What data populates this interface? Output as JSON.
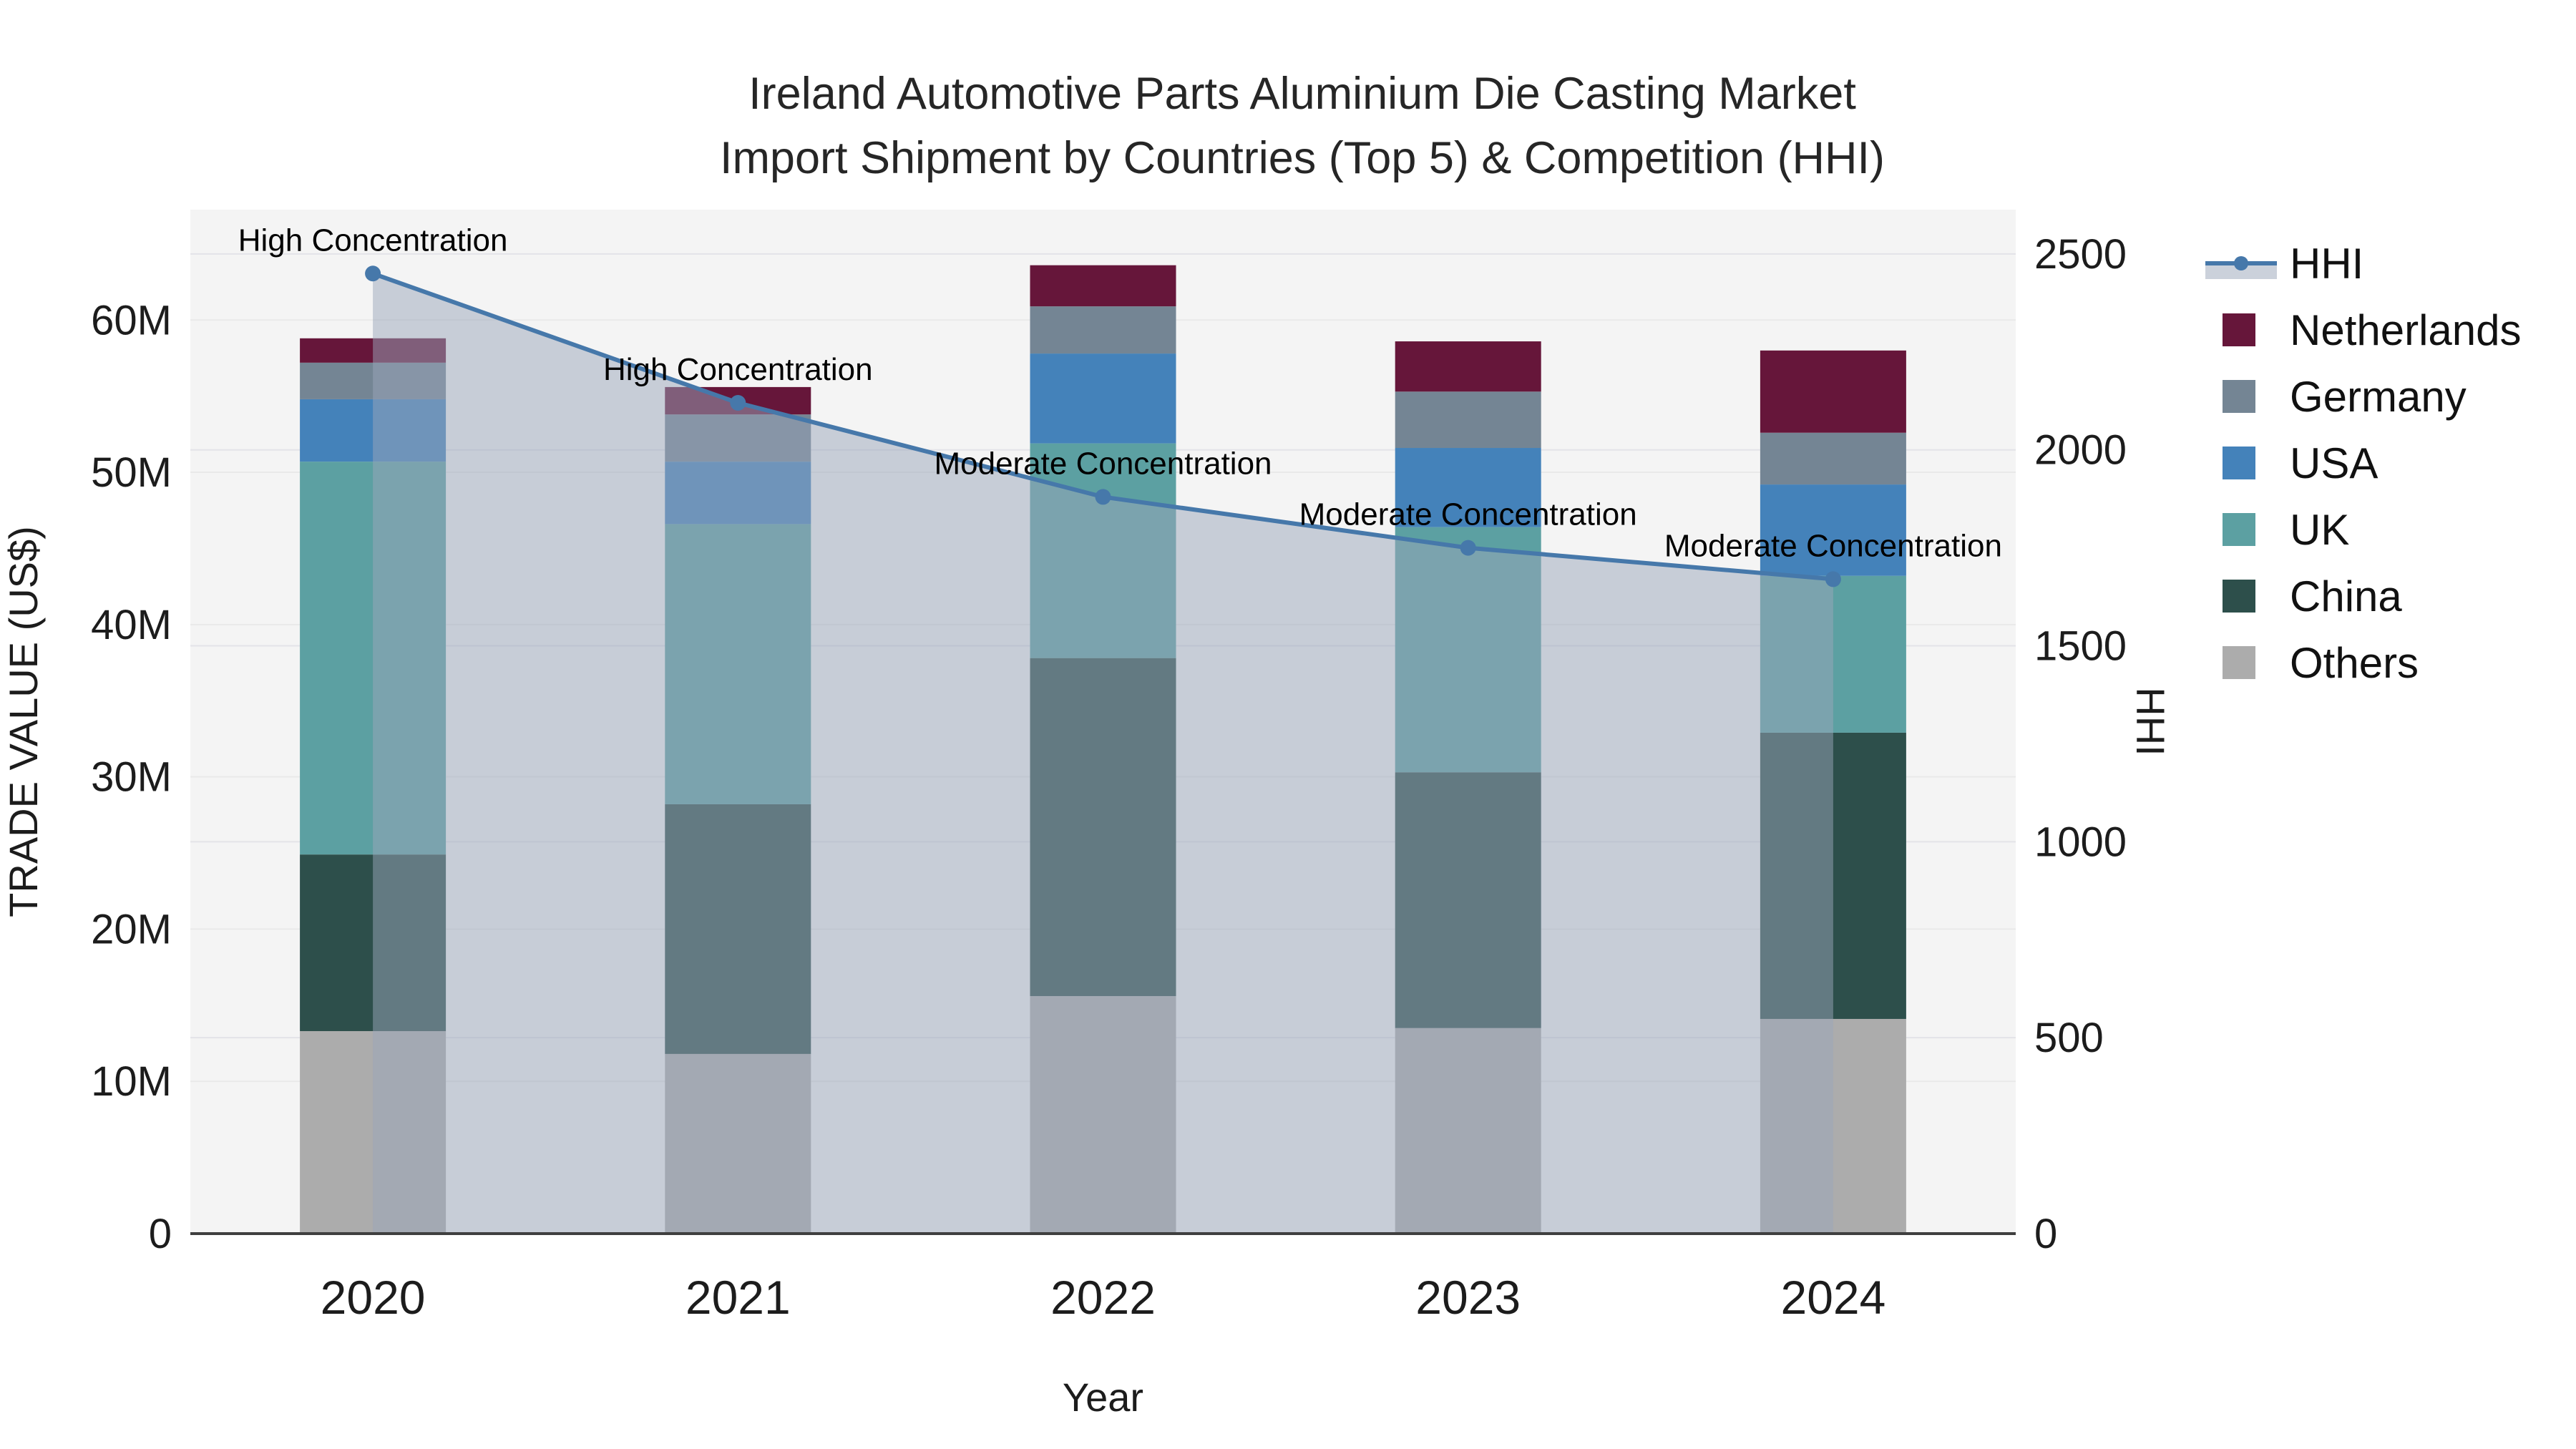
{
  "title": {
    "line1": "Ireland Automotive Parts Aluminium Die Casting Market",
    "line2": "Import Shipment by Countries (Top 5) & Competition (HHI)"
  },
  "chart_data": {
    "type": "combo_stacked_bar_line",
    "categories": [
      "2020",
      "2021",
      "2022",
      "2023",
      "2024"
    ],
    "bar_unit": "millions USD",
    "series": [
      {
        "name": "Others",
        "color": "#ACACAC",
        "values": [
          13.3,
          11.8,
          15.6,
          13.5,
          14.1
        ]
      },
      {
        "name": "China",
        "color": "#2D4F4B",
        "values": [
          11.6,
          16.4,
          22.2,
          16.8,
          18.8
        ]
      },
      {
        "name": "UK",
        "color": "#5CA0A2",
        "values": [
          25.8,
          18.4,
          14.1,
          16.1,
          10.3
        ]
      },
      {
        "name": "USA",
        "color": "#4482BA",
        "values": [
          4.1,
          4.1,
          5.9,
          5.2,
          6.0
        ]
      },
      {
        "name": "Germany",
        "color": "#748594",
        "values": [
          2.4,
          3.1,
          3.1,
          3.7,
          3.4
        ]
      },
      {
        "name": "Netherlands",
        "color": "#66163A",
        "values": [
          1.6,
          1.8,
          2.7,
          3.3,
          5.4
        ]
      }
    ],
    "line_series": {
      "name": "HHI",
      "color": "#4678AA",
      "area_fill": "rgba(154,166,185,0.5)",
      "values": [
        2450,
        2120,
        1880,
        1750,
        1670
      ]
    },
    "annotations": [
      {
        "x_index": 0,
        "text": "High Concentration"
      },
      {
        "x_index": 1,
        "text": "High Concentration"
      },
      {
        "x_index": 2,
        "text": "Moderate Concentration"
      },
      {
        "x_index": 3,
        "text": "Moderate Concentration"
      },
      {
        "x_index": 4,
        "text": "Moderate Concentration"
      }
    ],
    "xlabel": "Year",
    "y_left": {
      "title": "TRADE VALUE (US$)",
      "tick_labels": [
        "0",
        "10M",
        "20M",
        "30M",
        "40M",
        "50M",
        "60M"
      ],
      "tick_values": [
        0,
        10,
        20,
        30,
        40,
        50,
        60
      ],
      "range": [
        0,
        67.25
      ]
    },
    "y_right": {
      "title": "HHI",
      "tick_labels": [
        "0",
        "500",
        "1000",
        "1500",
        "2000",
        "2500"
      ],
      "tick_values": [
        0,
        500,
        1000,
        1500,
        2000,
        2500
      ],
      "range": [
        0,
        2613
      ]
    },
    "legend": [
      "HHI",
      "Netherlands",
      "Germany",
      "USA",
      "UK",
      "China",
      "Others"
    ],
    "grid": true,
    "legend_position": "right"
  },
  "colors": {
    "plot_bg": "#F4F4F4",
    "grid_left": "#E9E9E9",
    "grid_right": "#E3E3E8",
    "axis_line": "#3F3F3F",
    "tick_text": "#1C1C1C",
    "title_text": "#262626",
    "annotation_text": "#000000",
    "legend_fill_band": "#CBD1DB"
  }
}
